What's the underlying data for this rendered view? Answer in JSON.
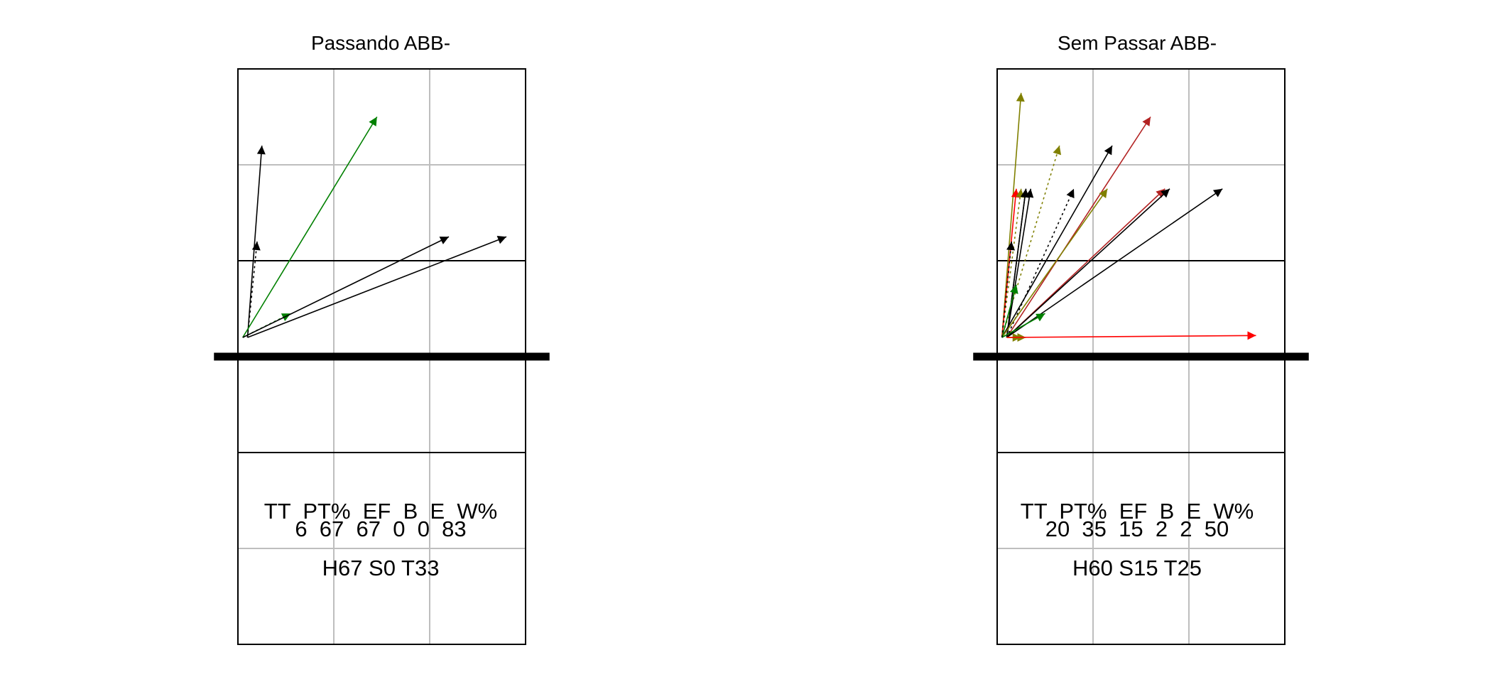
{
  "colors": {
    "black": "#000000",
    "green": "#008000",
    "olive": "#808000",
    "red": "#ff0000",
    "darkred": "#b22222",
    "grid": "#bebebe"
  },
  "panels": [
    {
      "title": "Passando ABB-",
      "stats_header": "TT  PT%  EF  B  E  W%",
      "stats_values": "6  67  67  0  0  83",
      "summary": "H67 S0 T33",
      "arrows": [
        {
          "from": [
            0.1,
            3.2
          ],
          "to": [
            0.25,
            5.2
          ],
          "color": "black",
          "dashed": false
        },
        {
          "from": [
            0.1,
            3.2
          ],
          "to": [
            0.2,
            4.2
          ],
          "color": "black",
          "dashed": true
        },
        {
          "from": [
            0.05,
            3.2
          ],
          "to": [
            1.45,
            5.5
          ],
          "color": "green",
          "dashed": false
        },
        {
          "from": [
            0.05,
            3.2
          ],
          "to": [
            0.55,
            3.45
          ],
          "color": "green",
          "dashed": true
        },
        {
          "from": [
            0.05,
            3.2
          ],
          "to": [
            2.2,
            4.25
          ],
          "color": "black",
          "dashed": false
        },
        {
          "from": [
            0.1,
            3.2
          ],
          "to": [
            2.8,
            4.25
          ],
          "color": "black",
          "dashed": false
        }
      ]
    },
    {
      "title": "Sem Passar ABB-",
      "stats_header": "TT  PT%  EF  B  E  W%",
      "stats_values": "20  35  15  2  2  50",
      "summary": "H60 S15 T25",
      "arrows": [
        {
          "from": [
            0.05,
            3.2
          ],
          "to": [
            0.25,
            5.75
          ],
          "color": "olive",
          "dashed": false
        },
        {
          "from": [
            0.05,
            3.2
          ],
          "to": [
            0.65,
            5.2
          ],
          "color": "olive",
          "dashed": true
        },
        {
          "from": [
            0.05,
            3.2
          ],
          "to": [
            1.2,
            5.2
          ],
          "color": "black",
          "dashed": false
        },
        {
          "from": [
            0.1,
            3.2
          ],
          "to": [
            1.6,
            5.5
          ],
          "color": "darkred",
          "dashed": false
        },
        {
          "from": [
            0.05,
            3.2
          ],
          "to": [
            0.2,
            4.75
          ],
          "color": "red",
          "dashed": false
        },
        {
          "from": [
            0.05,
            3.2
          ],
          "to": [
            0.25,
            4.75
          ],
          "color": "olive",
          "dashed": true
        },
        {
          "from": [
            0.1,
            3.2
          ],
          "to": [
            0.3,
            4.75
          ],
          "color": "black",
          "dashed": false
        },
        {
          "from": [
            0.1,
            3.2
          ],
          "to": [
            0.3,
            4.75
          ],
          "color": "black",
          "dashed": false
        },
        {
          "from": [
            0.1,
            3.2
          ],
          "to": [
            0.35,
            4.75
          ],
          "color": "black",
          "dashed": false
        },
        {
          "from": [
            0.1,
            3.2
          ],
          "to": [
            0.8,
            4.75
          ],
          "color": "black",
          "dashed": true
        },
        {
          "from": [
            0.05,
            3.2
          ],
          "to": [
            1.15,
            4.75
          ],
          "color": "olive",
          "dashed": false
        },
        {
          "from": [
            0.1,
            3.2
          ],
          "to": [
            1.75,
            4.75
          ],
          "color": "darkred",
          "dashed": false
        },
        {
          "from": [
            0.1,
            3.2
          ],
          "to": [
            1.8,
            4.75
          ],
          "color": "black",
          "dashed": false
        },
        {
          "from": [
            0.1,
            3.2
          ],
          "to": [
            2.35,
            4.75
          ],
          "color": "black",
          "dashed": false
        },
        {
          "from": [
            0.05,
            3.2
          ],
          "to": [
            0.2,
            3.75
          ],
          "color": "green",
          "dashed": false
        },
        {
          "from": [
            0.05,
            3.2
          ],
          "to": [
            0.5,
            3.45
          ],
          "color": "green",
          "dashed": false
        },
        {
          "from": [
            0.1,
            3.2
          ],
          "to": [
            0.25,
            3.2
          ],
          "color": "olive",
          "dashed": false
        },
        {
          "from": [
            0.1,
            3.2
          ],
          "to": [
            0.3,
            3.2
          ],
          "color": "olive",
          "dashed": false
        },
        {
          "from": [
            0.1,
            3.2
          ],
          "to": [
            2.7,
            3.22
          ],
          "color": "red",
          "dashed": false
        },
        {
          "from": [
            0.05,
            3.2
          ],
          "to": [
            0.15,
            4.2
          ],
          "color": "black",
          "dashed": true
        }
      ]
    }
  ]
}
